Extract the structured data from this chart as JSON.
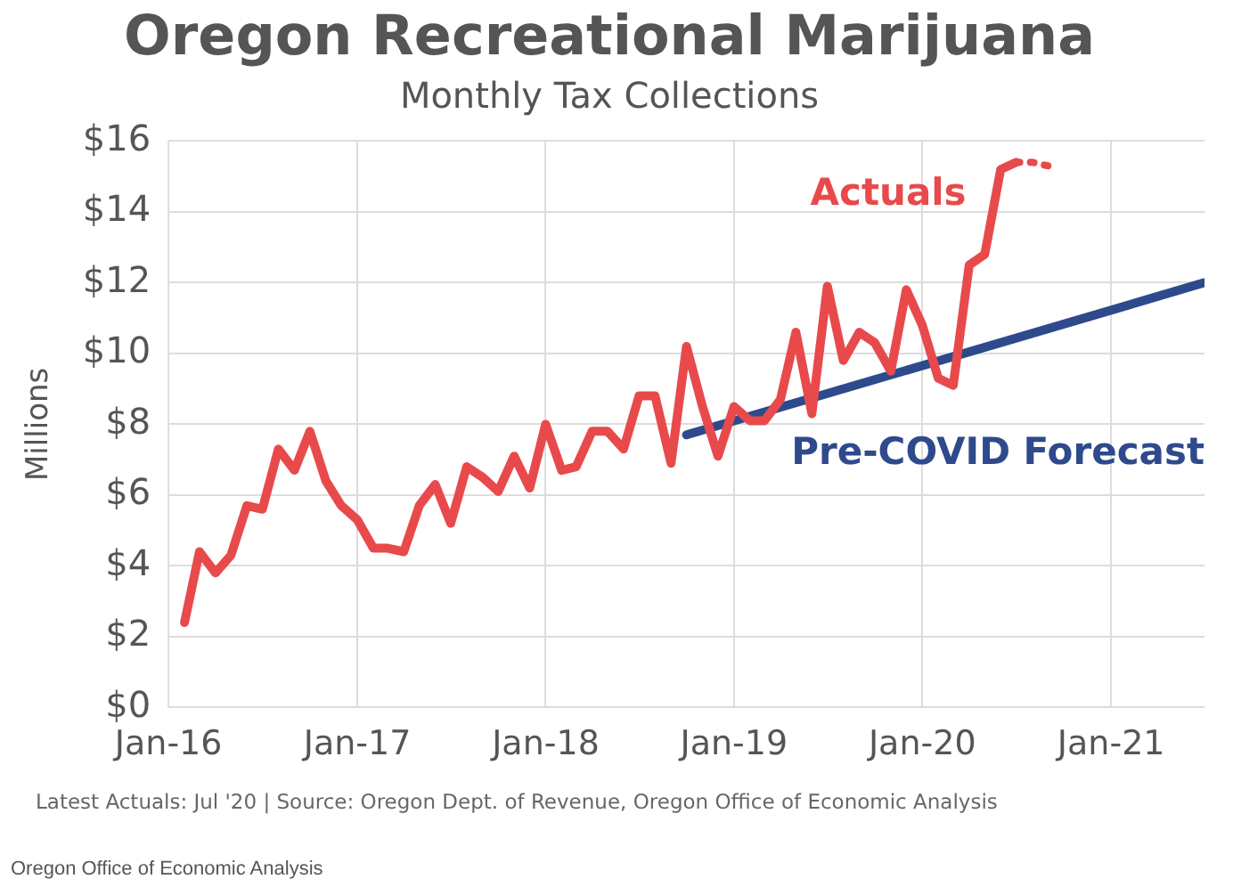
{
  "chart_data": {
    "type": "line",
    "title": "Oregon Recreational Marijuana",
    "subtitle": "Monthly Tax Collections",
    "ylabel": "Millions",
    "series": [
      {
        "name": "Actuals",
        "color": "#e84a4c",
        "x": [
          "2016-02",
          "2016-03",
          "2016-04",
          "2016-05",
          "2016-06",
          "2016-07",
          "2016-08",
          "2016-09",
          "2016-10",
          "2016-11",
          "2016-12",
          "2017-01",
          "2017-02",
          "2017-03",
          "2017-04",
          "2017-05",
          "2017-06",
          "2017-07",
          "2017-08",
          "2017-09",
          "2017-10",
          "2017-11",
          "2017-12",
          "2018-01",
          "2018-02",
          "2018-03",
          "2018-04",
          "2018-05",
          "2018-06",
          "2018-07",
          "2018-08",
          "2018-09",
          "2018-10",
          "2018-11",
          "2018-12",
          "2019-01",
          "2019-02",
          "2019-03",
          "2019-04",
          "2019-05",
          "2019-06",
          "2019-07",
          "2019-08",
          "2019-09",
          "2019-10",
          "2019-11",
          "2019-12",
          "2020-01",
          "2020-02",
          "2020-03",
          "2020-04",
          "2020-05",
          "2020-06",
          "2020-07"
        ],
        "values": [
          2.4,
          4.4,
          3.8,
          4.3,
          5.7,
          5.6,
          7.3,
          6.7,
          7.8,
          6.4,
          5.7,
          5.3,
          4.5,
          4.5,
          4.4,
          5.7,
          6.3,
          5.2,
          6.8,
          6.5,
          6.1,
          7.1,
          6.2,
          8.0,
          6.7,
          6.8,
          7.8,
          7.8,
          7.3,
          8.8,
          8.8,
          6.9,
          10.2,
          8.5,
          7.1,
          8.5,
          8.1,
          8.1,
          8.7,
          10.6,
          8.3,
          11.9,
          9.8,
          10.6,
          10.3,
          9.5,
          11.8,
          10.8,
          9.3,
          9.1,
          12.5,
          12.8,
          15.2,
          15.4
        ]
      },
      {
        "color": "#e84a4c",
        "line_style": "dotted",
        "x": [
          "2020-07",
          "2020-08",
          "2020-09"
        ],
        "values": [
          15.4,
          15.4,
          15.3
        ]
      },
      {
        "name": "Pre-COVID Forecast",
        "color": "#2e4a8c",
        "x": [
          "2018-10",
          "2021-07"
        ],
        "values": [
          7.7,
          12.0
        ]
      }
    ],
    "xlim": [
      "2016-01",
      "2021-07"
    ],
    "xticks": [
      {
        "value": "2016-01",
        "label": "Jan-16"
      },
      {
        "value": "2017-01",
        "label": "Jan-17"
      },
      {
        "value": "2018-01",
        "label": "Jan-18"
      },
      {
        "value": "2019-01",
        "label": "Jan-19"
      },
      {
        "value": "2020-01",
        "label": "Jan-20"
      },
      {
        "value": "2021-01",
        "label": "Jan-21"
      }
    ],
    "ylim": [
      0,
      16
    ],
    "yticks": [
      {
        "value": 0,
        "label": "$0"
      },
      {
        "value": 2,
        "label": "$2"
      },
      {
        "value": 4,
        "label": "$4"
      },
      {
        "value": 6,
        "label": "$6"
      },
      {
        "value": 8,
        "label": "$8"
      },
      {
        "value": 10,
        "label": "$10"
      },
      {
        "value": 12,
        "label": "$12"
      },
      {
        "value": 14,
        "label": "$14"
      },
      {
        "value": 16,
        "label": "$16"
      }
    ],
    "grid": true,
    "legend": false,
    "marker": "none",
    "line_style": "solid",
    "annotations": [
      "Latest Actuals: Jul '20  |  Source: Oregon Dept. of Revenue, Oregon Office of Economic Analysis",
      "Oregon Office of Economic Analysis"
    ]
  }
}
